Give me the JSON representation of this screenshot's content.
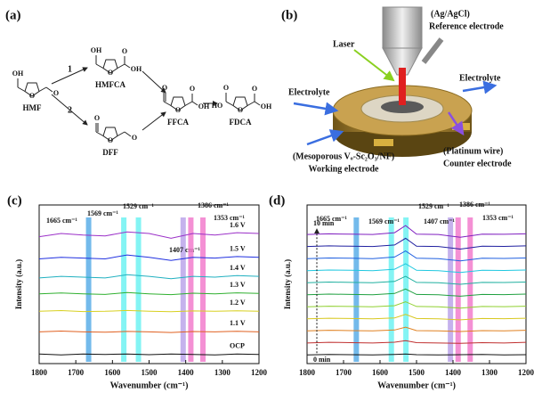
{
  "panel_a": {
    "label": "(a)",
    "steps": [
      "1",
      "2"
    ],
    "compounds": [
      {
        "name": "HMF",
        "atoms": [
          "OH",
          "O",
          "O"
        ]
      },
      {
        "name": "HMFCA",
        "atoms": [
          "OH",
          "O",
          "O",
          "OH"
        ]
      },
      {
        "name": "DFF",
        "atoms": [
          "O",
          "O",
          "O"
        ]
      },
      {
        "name": "FFCA",
        "atoms": [
          "O",
          "O",
          "O",
          "OH"
        ]
      },
      {
        "name": "FDCA",
        "atoms": [
          "HO",
          "O",
          "O",
          "O",
          "OH"
        ]
      }
    ]
  },
  "panel_b": {
    "label": "(b)",
    "reference": [
      "(Ag/AgCl)",
      "Reference electrode"
    ],
    "laser": "Laser",
    "electrolyte_in": "Electrolyte",
    "electrolyte_out": "Electrolyte",
    "counter": [
      "(Platinum wire)",
      "Counter electrode"
    ],
    "working": [
      "(Mesoporous Vₒ-Sc₂O₃/NF)",
      "Working electrode"
    ]
  },
  "chart_data": [
    {
      "type": "line",
      "label": "(c)",
      "xlabel": "Wavenumber (cm⁻¹)",
      "ylabel": "Intensity (a.u.)",
      "xlim": [
        1800,
        1200
      ],
      "xticks": [
        1800,
        1700,
        1600,
        1500,
        1400,
        1300,
        1200
      ],
      "ylim": [
        0,
        100
      ],
      "x": [
        1800,
        1740,
        1680,
        1620,
        1560,
        1500,
        1440,
        1380,
        1320,
        1260,
        1200
      ],
      "bands": [
        {
          "value": 1665,
          "label": "1665 cm⁻¹",
          "color": "#5aaee8"
        },
        {
          "value": 1569,
          "label": "1569 cm⁻¹",
          "color": "#6ef2f2"
        },
        {
          "value": 1529,
          "label": "1529 cm⁻¹",
          "color": "#6ef2f2"
        },
        {
          "value": 1407,
          "label": "1407 cm⁻¹",
          "color": "#bba4ea"
        },
        {
          "value": 1386,
          "label": "1386 cm⁻¹",
          "color": "#f27ccc"
        },
        {
          "value": 1353,
          "label": "1353 cm⁻¹",
          "color": "#f27ccc"
        }
      ],
      "series": [
        {
          "name": "OCP",
          "color": "#111111",
          "values": [
            6,
            5.5,
            6,
            5.8,
            6,
            5.6,
            6,
            5.8,
            5.5,
            6,
            5.8
          ]
        },
        {
          "name": "1.1 V",
          "color": "#e06020",
          "values": [
            20,
            20.5,
            20,
            19.8,
            20.3,
            20,
            19.6,
            20.2,
            20,
            20.4,
            20
          ]
        },
        {
          "name": "1.2 V",
          "color": "#d8d020",
          "values": [
            33,
            33.4,
            32.8,
            33,
            33.5,
            33,
            32.7,
            33.2,
            33,
            33.3,
            33
          ]
        },
        {
          "name": "1.3 V",
          "color": "#30b030",
          "values": [
            44,
            44.5,
            44,
            43.6,
            44.8,
            44,
            43.5,
            44.4,
            44,
            44.6,
            44.2
          ]
        },
        {
          "name": "1.4 V",
          "color": "#20b0c0",
          "values": [
            54,
            55,
            54.5,
            54,
            56,
            55,
            53.5,
            55,
            54.5,
            55.5,
            55
          ]
        },
        {
          "name": "1.5 V",
          "color": "#2030e0",
          "values": [
            66,
            67,
            66.5,
            66,
            68.5,
            67,
            65,
            67,
            66.5,
            67.5,
            67
          ]
        },
        {
          "name": "1.6 V",
          "color": "#9b30c8",
          "values": [
            80,
            82,
            81,
            80.5,
            83,
            82,
            79,
            82,
            81,
            82.5,
            82
          ]
        }
      ]
    },
    {
      "type": "line",
      "label": "(d)",
      "xlabel": "Wavenumber (cm⁻¹)",
      "ylabel": "Intensity (a.u.)",
      "xlim": [
        1800,
        1200
      ],
      "xticks": [
        1800,
        1700,
        1600,
        1500,
        1400,
        1300,
        1200
      ],
      "ylim": [
        0,
        100
      ],
      "x": [
        1800,
        1740,
        1680,
        1620,
        1560,
        1530,
        1500,
        1440,
        1380,
        1320,
        1260,
        1200
      ],
      "bands": [
        {
          "value": 1665,
          "label": "1665 cm⁻¹",
          "color": "#5aaee8"
        },
        {
          "value": 1569,
          "label": "1569 cm⁻¹",
          "color": "#6ef2f2"
        },
        {
          "value": 1529,
          "label": "1529 cm⁻¹",
          "color": "#6ef2f2"
        },
        {
          "value": 1407,
          "label": "1407 cm⁻¹",
          "color": "#bba4ea"
        },
        {
          "value": 1386,
          "label": "1386 cm⁻¹",
          "color": "#f27ccc"
        },
        {
          "value": 1353,
          "label": "1353 cm⁻¹",
          "color": "#f27ccc"
        }
      ],
      "series": [
        {
          "name": "0 min",
          "color": "#111111",
          "values": [
            5.5,
            5.8,
            5.6,
            5.5,
            5.8,
            6,
            5.6,
            5.5,
            5.6,
            5.8,
            5.5,
            5.6
          ]
        },
        {
          "color": "#c03030",
          "values": [
            13,
            13.4,
            13.2,
            13,
            13.5,
            14.5,
            13.2,
            13,
            12.8,
            13.2,
            13,
            13.4
          ]
        },
        {
          "color": "#e08020",
          "values": [
            20.6,
            21,
            20.8,
            20.6,
            21.2,
            23,
            20.8,
            20.6,
            20.2,
            20.8,
            20.7,
            21
          ]
        },
        {
          "color": "#d8c820",
          "values": [
            28.2,
            28.6,
            28.4,
            28.2,
            28.8,
            31,
            28.4,
            28.2,
            27.6,
            28.4,
            28.3,
            28.6
          ]
        },
        {
          "color": "#90d030",
          "values": [
            35.8,
            36.2,
            36,
            35.8,
            36.5,
            39,
            36,
            35.8,
            35,
            36,
            35.9,
            36.2
          ]
        },
        {
          "color": "#20a040",
          "values": [
            43.4,
            43.8,
            43.6,
            43.4,
            44.2,
            47,
            43.6,
            43.4,
            42.5,
            43.6,
            43.5,
            43.8
          ]
        },
        {
          "color": "#20b0a0",
          "values": [
            51,
            51.4,
            51.2,
            51,
            51.8,
            55,
            51.2,
            51,
            50,
            51.2,
            51.1,
            51.4
          ]
        },
        {
          "color": "#20c8e0",
          "values": [
            58.6,
            59,
            58.8,
            58.6,
            59.5,
            63,
            58.8,
            58.6,
            57.4,
            58.8,
            58.7,
            59
          ]
        },
        {
          "color": "#2060e0",
          "values": [
            66.2,
            66.6,
            66.4,
            66.2,
            67.2,
            71,
            66.4,
            66.2,
            64.8,
            66.4,
            66.3,
            66.6
          ]
        },
        {
          "color": "#2020a0",
          "values": [
            73.8,
            74.2,
            74,
            73.8,
            74.8,
            79,
            74,
            73.8,
            72.2,
            74,
            73.9,
            74.2
          ]
        },
        {
          "name": "10 min",
          "color": "#8020c0",
          "values": [
            81.4,
            81.8,
            81.6,
            81.4,
            82.5,
            87,
            81.6,
            81.4,
            79.6,
            81.6,
            81.5,
            81.8
          ]
        }
      ]
    }
  ]
}
